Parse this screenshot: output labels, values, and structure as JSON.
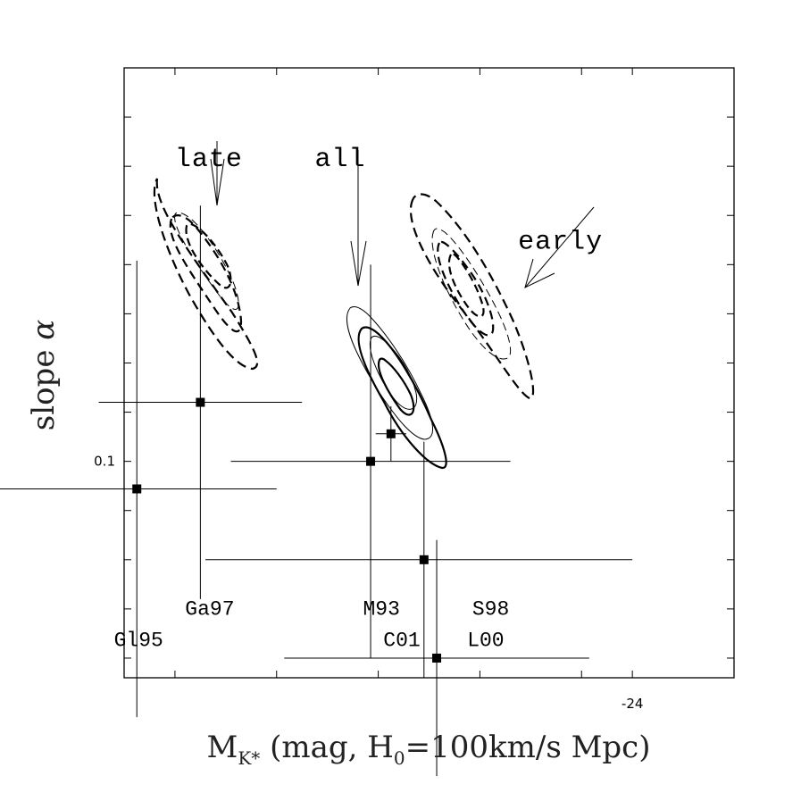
{
  "chart_data": {
    "type": "scatter",
    "x_label_main": "M",
    "x_label_sub": "K*",
    "x_label_rest": " (mag, H",
    "x_label_sub2": "0",
    "x_label_end": "=100km/s Mpc)",
    "ylabel_text": "slope ",
    "ylabel_symbol": "α",
    "x_tick_labels": [
      {
        "x": -24,
        "label": "-24"
      }
    ],
    "y_tick_labels": [
      {
        "y": 0.1,
        "label": "0.1"
      }
    ],
    "xlim": [
      -22.0,
      -24.4
    ],
    "ylim": [
      0.045,
      0.2
    ],
    "grid": false,
    "annotations": [
      {
        "text": "late",
        "x": -22.2,
        "y": 0.175
      },
      {
        "text": "all",
        "x": -22.75,
        "y": 0.175
      },
      {
        "text": "early",
        "x": -23.55,
        "y": 0.154
      }
    ],
    "points": [
      {
        "label": "Gl95",
        "x": -22.05,
        "y": 0.093,
        "xerr": [
          0.55,
          0.55
        ],
        "yerr": [
          0.058,
          0.058
        ],
        "label_x": -21.96,
        "label_y": 0.053
      },
      {
        "label": "Ga97",
        "x": -22.3,
        "y": 0.115,
        "xerr": [
          0.4,
          0.4
        ],
        "yerr": [
          0.05,
          0.05
        ],
        "label_x": -22.24,
        "label_y": 0.061
      },
      {
        "label": "M93",
        "x": -22.97,
        "y": 0.1,
        "xerr": [
          0.55,
          0.55
        ],
        "yerr": [
          0.05,
          0.05
        ],
        "label_x": -22.94,
        "label_y": 0.061
      },
      {
        "label": "C01",
        "x": -23.05,
        "y": 0.107,
        "xerr": [
          0.06,
          0.06
        ],
        "yerr": [
          0.007,
          0.007
        ],
        "label_x": -23.02,
        "label_y": 0.053
      },
      {
        "label": "S98",
        "x": -23.18,
        "y": 0.075,
        "xerr": [
          0.82,
          0.86
        ],
        "yerr": [
          0.03,
          0.03
        ],
        "label_x": -23.37,
        "label_y": 0.061
      },
      {
        "label": "L00",
        "x": -23.23,
        "y": 0.05,
        "xerr": [
          0.6,
          0.6
        ],
        "yerr": [
          0.03,
          0.03
        ],
        "label_x": -23.35,
        "label_y": 0.053
      }
    ]
  }
}
